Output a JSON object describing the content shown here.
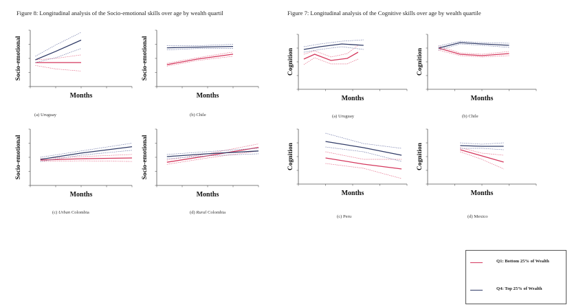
{
  "figure8_title": "Figure 8: Longitudinal analysis of the Socio-emotional skills over age by wealth quartil",
  "figure7_title": "Figure 7: Longitudinal analysis of the Cognitive skills over age by wealth quartile",
  "colors": {
    "q1": "#d4365c",
    "q4": "#2f3a66",
    "q1_ci": "#e46a87",
    "q4_ci": "#6f78a8",
    "axis": "#555555"
  },
  "legend": {
    "q1_label": "Q1: Bottom 25% of Wealth",
    "q4_label": "Q4: Top 25% of Wealth"
  },
  "chart_data": [
    {
      "id": "se-uruguay",
      "type": "line",
      "caption_prefix": "(a)",
      "caption_italic": "",
      "caption_rest": "Uruguay",
      "xlabel": "Months",
      "ylabel": "Socio-emotional",
      "xlim": [
        0,
        200
      ],
      "ylim": [
        -2,
        2
      ],
      "series": [
        {
          "name": "Q1: Bottom 25% of Wealth",
          "x": [
            10,
            50,
            100
          ],
          "y": [
            -0.3,
            -0.3,
            -0.3
          ],
          "lo": [
            -0.5,
            -0.75,
            -0.9
          ],
          "hi": [
            -0.1,
            0.0,
            0.25
          ]
        },
        {
          "name": "Q4: Top 25% of Wealth",
          "x": [
            10,
            50,
            100
          ],
          "y": [
            -0.1,
            0.5,
            1.3
          ],
          "lo": [
            -0.3,
            0.05,
            0.7
          ],
          "hi": [
            0.15,
            0.95,
            1.85
          ]
        }
      ]
    },
    {
      "id": "se-chile",
      "type": "line",
      "caption_prefix": "(b)",
      "caption_italic": "",
      "caption_rest": "Chile",
      "xlabel": "Months",
      "ylabel": "Socio-emotional",
      "xlim": [
        0,
        200
      ],
      "ylim": [
        -2,
        2
      ],
      "series": [
        {
          "name": "Q1: Bottom 25% of Wealth",
          "x": [
            20,
            80,
            150
          ],
          "y": [
            -0.45,
            -0.05,
            0.3
          ],
          "lo": [
            -0.55,
            -0.15,
            0.15
          ],
          "hi": [
            -0.35,
            0.05,
            0.45
          ]
        },
        {
          "name": "Q4: Top 25% of Wealth",
          "x": [
            20,
            80,
            150
          ],
          "y": [
            0.75,
            0.8,
            0.85
          ],
          "lo": [
            0.6,
            0.7,
            0.7
          ],
          "hi": [
            0.9,
            0.9,
            1.0
          ]
        }
      ]
    },
    {
      "id": "se-urban-colombia",
      "type": "line",
      "caption_prefix": "(c)",
      "caption_italic": "Urban",
      "caption_rest": " Colombia",
      "xlabel": "Months",
      "ylabel": "Socio-emotional",
      "xlim": [
        0,
        200
      ],
      "ylim": [
        -2,
        2
      ],
      "series": [
        {
          "name": "Q1: Bottom 25% of Wealth",
          "x": [
            20,
            100,
            200
          ],
          "y": [
            -0.2,
            -0.1,
            -0.05
          ],
          "lo": [
            -0.3,
            -0.25,
            -0.3
          ],
          "hi": [
            -0.1,
            0.05,
            0.2
          ]
        },
        {
          "name": "Q4: Top 25% of Wealth",
          "x": [
            20,
            100,
            200
          ],
          "y": [
            -0.15,
            0.3,
            0.75
          ],
          "lo": [
            -0.3,
            0.15,
            0.5
          ],
          "hi": [
            0.0,
            0.45,
            1.0
          ]
        }
      ]
    },
    {
      "id": "se-rural-colombia",
      "type": "line",
      "caption_prefix": "(d)",
      "caption_italic": "Rural",
      "caption_rest": " Colombia",
      "xlabel": "Months",
      "ylabel": "Socio-emotional",
      "xlim": [
        0,
        200
      ],
      "ylim": [
        -2,
        2
      ],
      "series": [
        {
          "name": "Q1: Bottom 25% of Wealth",
          "x": [
            20,
            100,
            200
          ],
          "y": [
            -0.35,
            0.1,
            0.7
          ],
          "lo": [
            -0.5,
            -0.05,
            0.45
          ],
          "hi": [
            -0.2,
            0.25,
            0.95
          ]
        },
        {
          "name": "Q4: Top 25% of Wealth",
          "x": [
            20,
            100,
            200
          ],
          "y": [
            0.05,
            0.25,
            0.45
          ],
          "lo": [
            -0.1,
            0.1,
            0.25
          ],
          "hi": [
            0.2,
            0.4,
            0.65
          ]
        }
      ]
    },
    {
      "id": "cog-uruguay",
      "type": "line",
      "caption_prefix": "(a)",
      "caption_italic": "",
      "caption_rest": "Uruguay",
      "xlabel": "Months",
      "ylabel": "Cognition",
      "xlim": [
        0,
        200
      ],
      "ylim": [
        -2,
        2
      ],
      "series": [
        {
          "name": "Q1: Bottom 25% of Wealth",
          "x": [
            10,
            30,
            60,
            90,
            110
          ],
          "y": [
            0.2,
            0.55,
            0.1,
            0.25,
            0.7
          ],
          "lo": [
            -0.2,
            0.3,
            -0.15,
            -0.15,
            0.2
          ],
          "hi": [
            0.55,
            0.8,
            0.35,
            0.6,
            1.2
          ]
        },
        {
          "name": "Q4: Top 25% of Wealth",
          "x": [
            10,
            40,
            80,
            120
          ],
          "y": [
            0.9,
            1.1,
            1.3,
            1.2
          ],
          "lo": [
            0.7,
            0.9,
            1.1,
            0.9
          ],
          "hi": [
            1.1,
            1.3,
            1.5,
            1.6
          ]
        }
      ]
    },
    {
      "id": "cog-chile",
      "type": "line",
      "caption_prefix": "(b)",
      "caption_italic": "",
      "caption_rest": "Chile",
      "xlabel": "Months",
      "ylabel": "Cognition",
      "xlim": [
        0,
        200
      ],
      "ylim": [
        -2,
        2
      ],
      "series": [
        {
          "name": "Q1: Bottom 25% of Wealth",
          "x": [
            20,
            60,
            100,
            150
          ],
          "y": [
            1.0,
            0.55,
            0.45,
            0.6
          ],
          "lo": [
            0.85,
            0.45,
            0.35,
            0.45
          ],
          "hi": [
            1.15,
            0.65,
            0.55,
            0.75
          ]
        },
        {
          "name": "Q4: Top 25% of Wealth",
          "x": [
            20,
            60,
            100,
            150
          ],
          "y": [
            1.0,
            1.4,
            1.3,
            1.2
          ],
          "lo": [
            0.85,
            1.3,
            1.2,
            1.05
          ],
          "hi": [
            1.15,
            1.5,
            1.4,
            1.35
          ]
        }
      ]
    },
    {
      "id": "cog-peru",
      "type": "line",
      "caption_prefix": "(c)",
      "caption_italic": "",
      "caption_rest": "Peru",
      "xlabel": "Months",
      "ylabel": "Cognition",
      "xlim": [
        0,
        200
      ],
      "ylim": [
        -2,
        2
      ],
      "series": [
        {
          "name": "Q1: Bottom 25% of Wealth",
          "x": [
            50,
            120,
            190
          ],
          "y": [
            -0.1,
            -0.55,
            -0.9
          ],
          "lo": [
            -0.5,
            -0.85,
            -1.6
          ],
          "hi": [
            0.35,
            -0.2,
            -0.2
          ]
        },
        {
          "name": "Q4: Top 25% of Wealth",
          "x": [
            50,
            120,
            190
          ],
          "y": [
            1.1,
            0.65,
            0.1
          ],
          "lo": [
            0.7,
            0.35,
            -0.35
          ],
          "hi": [
            1.7,
            0.95,
            0.6
          ]
        }
      ]
    },
    {
      "id": "cog-mexico",
      "type": "line",
      "caption_prefix": "(d)",
      "caption_italic": "",
      "caption_rest": "Mexico",
      "xlabel": "Months",
      "ylabel": "Cognition",
      "xlim": [
        0,
        200
      ],
      "ylim": [
        -2,
        2
      ],
      "series": [
        {
          "name": "Q1: Bottom 25% of Wealth",
          "x": [
            60,
            100,
            140
          ],
          "y": [
            0.5,
            0.05,
            -0.4
          ],
          "lo": [
            0.35,
            -0.2,
            -0.9
          ],
          "hi": [
            0.65,
            0.25,
            0.1
          ]
        },
        {
          "name": "Q4: Top 25% of Wealth",
          "x": [
            60,
            100,
            140
          ],
          "y": [
            0.8,
            0.75,
            0.75
          ],
          "lo": [
            0.6,
            0.6,
            0.5
          ],
          "hi": [
            1.0,
            0.9,
            1.0
          ]
        }
      ]
    }
  ]
}
